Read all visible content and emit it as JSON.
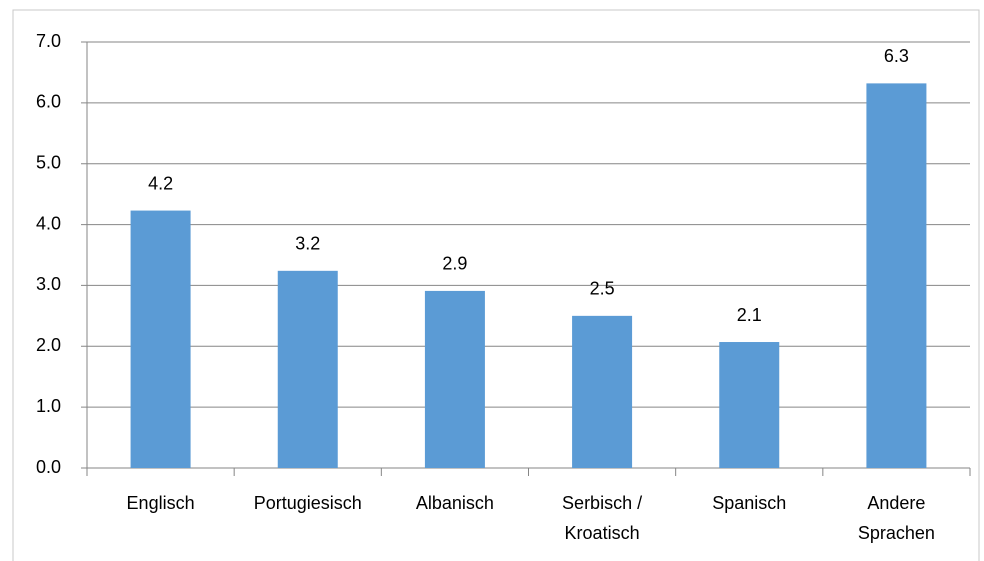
{
  "chart_data": {
    "type": "bar",
    "categories": [
      "Englisch",
      "Portugiesisch",
      "Albanisch",
      "Serbisch /\nKroatisch",
      "Spanisch",
      "Andere\nSprachen"
    ],
    "values": [
      4.23,
      3.24,
      2.91,
      2.5,
      2.07,
      6.32
    ],
    "value_labels": [
      "4.2",
      "3.2",
      "2.9",
      "2.5",
      "2.1",
      "6.3"
    ],
    "color": "#5b9bd5",
    "ylim": [
      0,
      7
    ],
    "yticks": [
      {
        "value": 0,
        "label": "0.0"
      },
      {
        "value": 1,
        "label": "1.0"
      },
      {
        "value": 2,
        "label": "2.0"
      },
      {
        "value": 3,
        "label": "3.0"
      },
      {
        "value": 4,
        "label": "4.0"
      },
      {
        "value": 5,
        "label": "5.0"
      },
      {
        "value": 6,
        "label": "6.0"
      },
      {
        "value": 7,
        "label": "7.0"
      }
    ],
    "grid": true
  }
}
